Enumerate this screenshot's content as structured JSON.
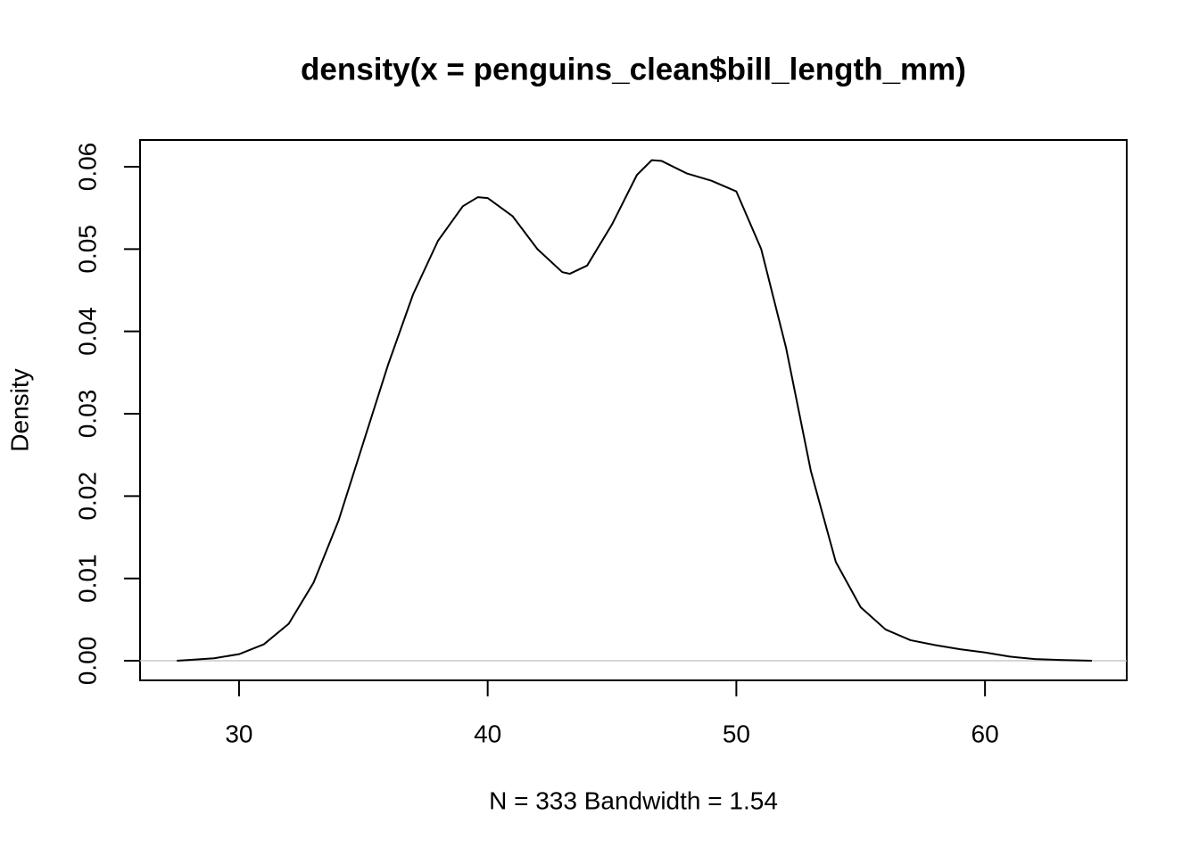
{
  "chart_data": {
    "type": "line",
    "title": "density(x = penguins_clean$bill_length_mm)",
    "x_label": "N = 333   Bandwidth = 1.54",
    "y_label": "Density",
    "x": [
      27.5,
      28,
      29,
      30,
      31,
      32,
      33,
      34,
      35,
      36,
      37,
      38,
      39,
      39.6,
      40,
      41,
      42,
      43,
      43.3,
      44,
      45,
      46,
      46.6,
      47,
      48,
      49,
      50,
      51,
      52,
      53,
      54,
      55,
      56,
      57,
      58,
      59,
      60,
      61,
      62,
      63,
      64.3
    ],
    "series": [
      {
        "name": "density",
        "color": "#000000",
        "values": [
          0.0,
          0.0001,
          0.0003,
          0.0008,
          0.002,
          0.0045,
          0.0095,
          0.017,
          0.0265,
          0.036,
          0.0445,
          0.051,
          0.0552,
          0.0563,
          0.0562,
          0.054,
          0.05,
          0.0472,
          0.047,
          0.048,
          0.053,
          0.059,
          0.0608,
          0.0607,
          0.0592,
          0.0583,
          0.057,
          0.05,
          0.038,
          0.023,
          0.012,
          0.0065,
          0.0038,
          0.0025,
          0.0019,
          0.0014,
          0.001,
          0.0005,
          0.0002,
          0.0001,
          0.0
        ]
      }
    ],
    "xlim": [
      26.02,
      65.7
    ],
    "ylim": [
      -0.00238,
      0.06325
    ],
    "xticks": [
      30,
      40,
      50,
      60
    ],
    "yticks": [
      {
        "value": 0,
        "label": "0.00"
      },
      {
        "value": 0.01,
        "label": "0.01"
      },
      {
        "value": 0.02,
        "label": "0.02"
      },
      {
        "value": 0.03,
        "label": "0.03"
      },
      {
        "value": 0.04,
        "label": "0.04"
      },
      {
        "value": 0.05,
        "label": "0.05"
      },
      {
        "value": 0.06,
        "label": "0.06"
      }
    ],
    "zero_line": true
  }
}
